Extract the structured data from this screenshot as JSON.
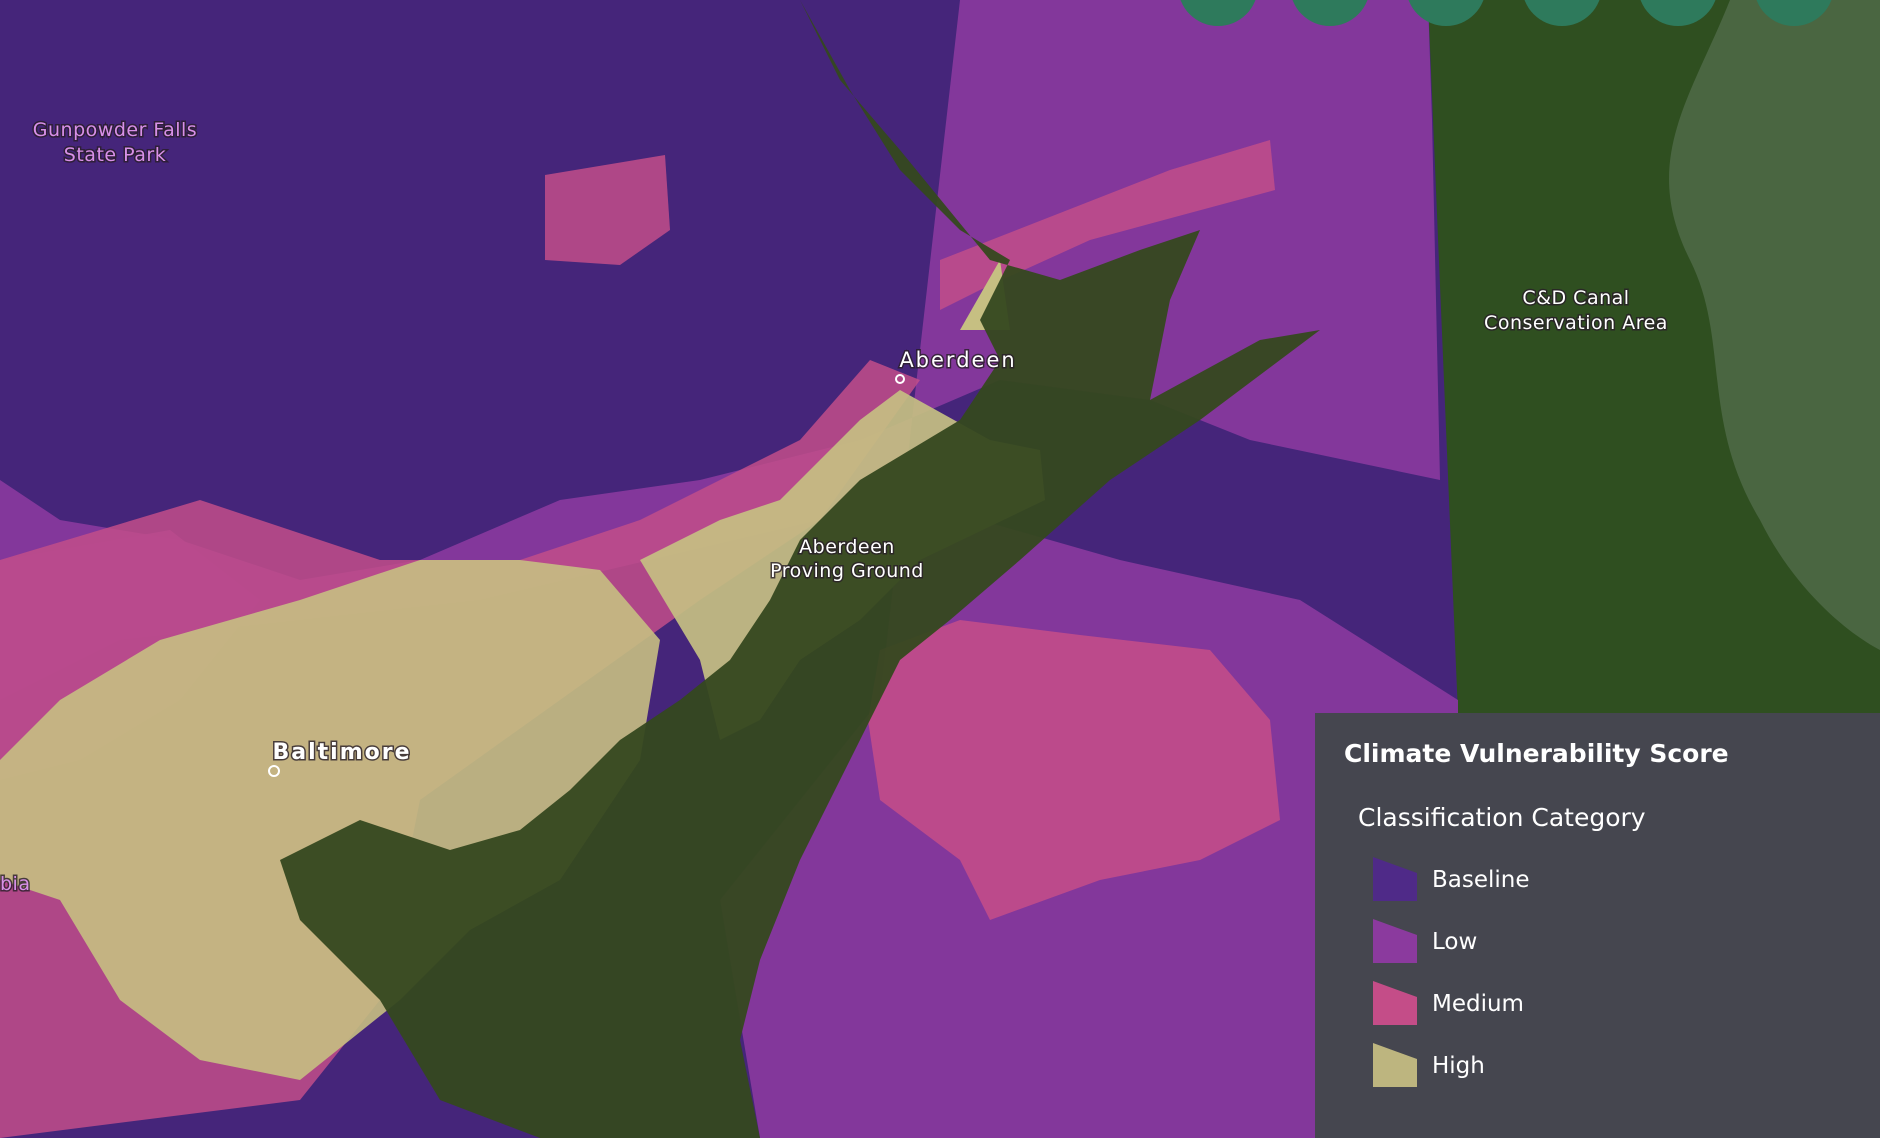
{
  "map_labels": {
    "gunpowder": [
      "Gunpowder Falls",
      "State Park"
    ],
    "aberdeen": "Aberdeen",
    "proving_ground": [
      "Aberdeen",
      "Proving Ground"
    ],
    "baltimore": "Baltimore",
    "partial_left": "bia",
    "canal": [
      "C&D Canal",
      "Conservation Area"
    ]
  },
  "legend": {
    "title": "Climate Vulnerability Score",
    "subtitle": "Classification Category",
    "items": [
      {
        "label": "Baseline",
        "color": "#4f2a88"
      },
      {
        "label": "Low",
        "color": "#8b3a9e"
      },
      {
        "label": "Medium",
        "color": "#c44d88"
      },
      {
        "label": "High",
        "color": "#bdb57f"
      }
    ]
  }
}
